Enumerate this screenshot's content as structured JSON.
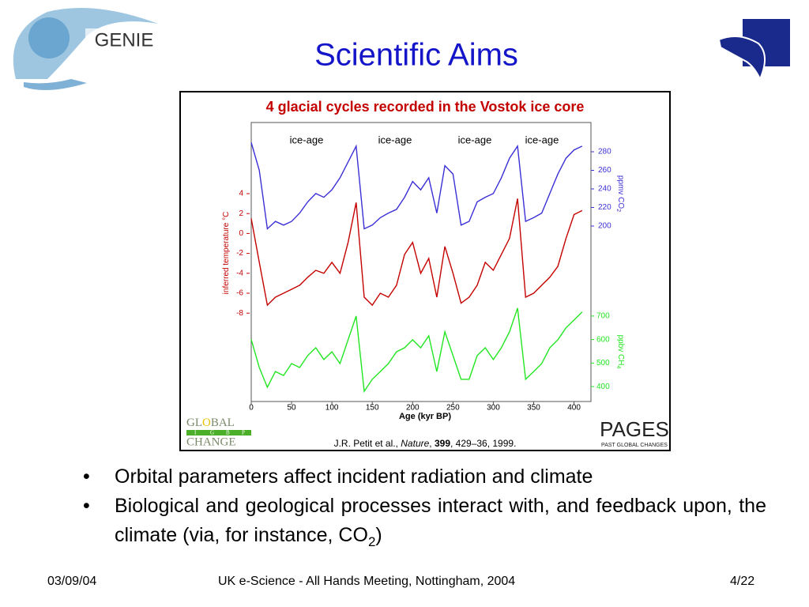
{
  "header": {
    "title": "Scientific Aims",
    "logo_text": "GENIE"
  },
  "figure": {
    "title": "4 glacial cycles recorded in the Vostok ice core",
    "annotations": [
      "ice-age",
      "ice-age",
      "ice-age",
      "ice-age"
    ],
    "x_label": "Age (kyr BP)",
    "xlim": [
      0,
      420
    ],
    "xticks": [
      0,
      50,
      100,
      150,
      200,
      250,
      300,
      350,
      400
    ],
    "x": [
      0,
      10,
      20,
      30,
      40,
      50,
      60,
      70,
      80,
      90,
      100,
      110,
      120,
      130,
      140,
      150,
      160,
      170,
      180,
      190,
      200,
      210,
      220,
      230,
      240,
      250,
      260,
      270,
      280,
      290,
      300,
      310,
      320,
      330,
      340,
      350,
      360,
      370,
      380,
      390,
      400,
      410
    ],
    "series": [
      {
        "axis_label": [
          "ppmv CO",
          "2"
        ],
        "color": "#3b2fd6",
        "ylim": [
          180,
          300
        ],
        "yticks": [
          280,
          260,
          240,
          220,
          200
        ],
        "values": [
          290,
          260,
          197,
          205,
          201,
          205,
          214,
          226,
          235,
          231,
          239,
          252,
          269,
          286,
          197,
          201,
          209,
          214,
          218,
          231,
          248,
          239,
          252,
          214,
          265,
          256,
          201,
          205,
          226,
          231,
          235,
          252,
          273,
          286,
          205,
          209,
          214,
          235,
          256,
          273,
          282,
          286
        ]
      },
      {
        "axis_label": [
          "inferred temperature °C"
        ],
        "color": "#c40000",
        "ylim": [
          -10,
          5
        ],
        "yticks": [
          4,
          2,
          0,
          -2,
          -4,
          -6,
          -8
        ],
        "values": [
          1.5,
          -2.9,
          -7.2,
          -6.4,
          -6,
          -5.6,
          -5.2,
          -4.4,
          -3.7,
          -4,
          -2.9,
          -4,
          -0.9,
          3.1,
          -6.4,
          -7.2,
          -6,
          -6.4,
          -5.2,
          -2.1,
          -0.9,
          -4,
          -2.5,
          -6.4,
          -1.3,
          -4,
          -7,
          -6.4,
          -5.2,
          -2.9,
          -3.7,
          -2.1,
          -0.5,
          3.5,
          -6.4,
          -6,
          -5.2,
          -4.4,
          -3.3,
          -0.5,
          1.9,
          2.3
        ]
      },
      {
        "axis_label": [
          "ppbv CH",
          "4"
        ],
        "color": "#22e622",
        "ylim": [
          350,
          750
        ],
        "yticks": [
          700,
          600,
          500,
          400
        ],
        "values": [
          600,
          481,
          397,
          464,
          447,
          498,
          481,
          532,
          565,
          515,
          548,
          498,
          599,
          700,
          380,
          431,
          464,
          498,
          548,
          565,
          599,
          565,
          616,
          464,
          633,
          532,
          431,
          431,
          532,
          565,
          515,
          565,
          633,
          734,
          431,
          464,
          498,
          565,
          599,
          650,
          683,
          717
        ]
      }
    ],
    "citation": [
      "J.R. Petit et al., ",
      "Nature",
      ", ",
      "399",
      ", 429–36, 1999."
    ],
    "logos": {
      "global": [
        "GL",
        "O",
        "BAL"
      ],
      "igbp": [
        "I",
        "G",
        "B",
        "P"
      ],
      "change": "CHANGE",
      "pages": "PAGES",
      "pages_sub": "PAST GLOBAL CHANGES"
    }
  },
  "bullets": [
    [
      "Orbital parameters affect incident radiation and climate"
    ],
    [
      "Biological and geological processes interact with, and feedback upon, the climate (via, for instance, CO",
      "2",
      ")"
    ]
  ],
  "footer": {
    "date": "03/09/04",
    "event": "UK e-Science - All Hands Meeting, Nottingham, 2004",
    "page": "4/22"
  }
}
